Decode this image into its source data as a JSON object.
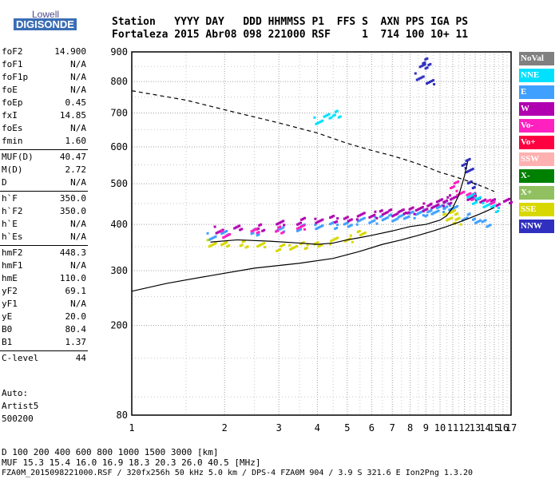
{
  "logo": {
    "line1": "Lowell",
    "line2": "DIGISONDE"
  },
  "header": {
    "line1": "Station   YYYY DAY   DDD HHMMSS P1  FFS S  AXN PPS IGA PS",
    "line2": "Fortaleza 2015 Abr08 098 221000 RSF     1  714 100 10+ 11"
  },
  "params": [
    {
      "key": "foF2",
      "value": "14.900"
    },
    {
      "key": "foF1",
      "value": "N/A"
    },
    {
      "key": "foF1p",
      "value": "N/A"
    },
    {
      "key": "foE",
      "value": "N/A"
    },
    {
      "key": "foEp",
      "value": "0.45"
    },
    {
      "key": "fxI",
      "value": "14.85"
    },
    {
      "key": "foEs",
      "value": "N/A"
    },
    {
      "key": "fmin",
      "value": "1.60"
    },
    {
      "key": "MUF(D)",
      "value": "40.47"
    },
    {
      "key": "M(D)",
      "value": "2.72"
    },
    {
      "key": "D",
      "value": "N/A"
    },
    {
      "key": "h`F",
      "value": "350.0"
    },
    {
      "key": "h`F2",
      "value": "350.0"
    },
    {
      "key": "h`E",
      "value": "N/A"
    },
    {
      "key": "h`Es",
      "value": "N/A"
    },
    {
      "key": "hmF2",
      "value": "448.3"
    },
    {
      "key": "hmF1",
      "value": "N/A"
    },
    {
      "key": "hmE",
      "value": "110.0"
    },
    {
      "key": "yF2",
      "value": "69.1"
    },
    {
      "key": "yF1",
      "value": "N/A"
    },
    {
      "key": "yE",
      "value": "20.0"
    },
    {
      "key": "B0",
      "value": "80.4"
    },
    {
      "key": "B1",
      "value": "1.37"
    },
    {
      "key": "C-level",
      "value": "44"
    }
  ],
  "auto": {
    "line1": "Auto:",
    "line2": "Artist5",
    "line3": "500200"
  },
  "legend": [
    {
      "label": "NoVal",
      "color": "#808080"
    },
    {
      "label": "NNE",
      "color": "#00e0ff"
    },
    {
      "label": "E",
      "color": "#40a0ff"
    },
    {
      "label": "W",
      "color": "#b000b0"
    },
    {
      "label": "Vo-",
      "color": "#ff20c0"
    },
    {
      "label": "Vo+",
      "color": "#ff0040"
    },
    {
      "label": "SSW",
      "color": "#ffb0b0"
    },
    {
      "label": "X-",
      "color": "#008000"
    },
    {
      "label": "X+",
      "color": "#90c060"
    },
    {
      "label": "SSE",
      "color": "#d8d800"
    },
    {
      "label": "NNW",
      "color": "#3030c0"
    }
  ],
  "footer": {
    "d_line": "D     100  200  400  600  800 1000 1500 3000 [km]",
    "muf_line": "MUF  15.3 15.4 16.0 16.9 18.3 20.3 26.0 40.5 [MHz]",
    "info_line": "FZA0M_2015098221000.RSF / 320fx256h 50 kHz 5.0 km / DPS-4 FZA0M 904 / 3.9 S 321.6 E   Ion2Png 1.3.20"
  },
  "chart_data": {
    "type": "scatter",
    "title": "",
    "xlabel": "",
    "ylabel": "",
    "xlim": [
      1,
      17
    ],
    "ylim": [
      80,
      900
    ],
    "x_scale": "log-frequency",
    "y_scale": "sqrt-height",
    "x_ticks": [
      1,
      2,
      3,
      4,
      5,
      6,
      7,
      8,
      9,
      10,
      11,
      12,
      13,
      14,
      15,
      16,
      17
    ],
    "y_ticks": [
      80,
      200,
      300,
      400,
      500,
      600,
      700,
      800,
      900
    ],
    "grid": true,
    "legend_position": "right",
    "series": [
      {
        "name": "E",
        "color": "#40a0ff",
        "kind": "points",
        "x": [
          1.8,
          2.0,
          2.5,
          3.0,
          3.5,
          4.0,
          4.5,
          5.0,
          5.5,
          6.0,
          6.5,
          7.0,
          7.5,
          8.0,
          8.5,
          9.0,
          9.5,
          10.0,
          10.5,
          11.0,
          12.0,
          13.0,
          14.0
        ],
        "y": [
          375,
          380,
          385,
          390,
          395,
          398,
          400,
          405,
          410,
          412,
          415,
          418,
          420,
          425,
          430,
          430,
          435,
          440,
          445,
          440,
          420,
          410,
          405
        ]
      },
      {
        "name": "W",
        "color": "#b000b0",
        "kind": "points",
        "x": [
          1.9,
          2.2,
          2.6,
          3.0,
          3.5,
          4.0,
          4.5,
          5.0,
          5.5,
          6.0,
          6.5,
          7.0,
          7.5,
          8.0,
          8.5,
          9.0,
          9.5,
          10.0,
          10.5,
          11.0,
          12.5,
          13.5,
          15.0,
          16.5
        ],
        "y": [
          390,
          392,
          395,
          405,
          410,
          412,
          415,
          418,
          422,
          425,
          428,
          430,
          432,
          435,
          440,
          445,
          450,
          455,
          460,
          465,
          470,
          460,
          455,
          460
        ]
      },
      {
        "name": "SSE",
        "color": "#d8d800",
        "kind": "points",
        "x": [
          1.8,
          2.0,
          2.3,
          2.6,
          3.0,
          3.3,
          3.6,
          4.0,
          4.5,
          5.0,
          5.5,
          10.5,
          11.0,
          11.3
        ],
        "y": [
          360,
          355,
          358,
          355,
          350,
          352,
          355,
          360,
          365,
          370,
          380,
          420,
          430,
          410
        ]
      },
      {
        "name": "NNW",
        "color": "#3030c0",
        "kind": "points",
        "x": [
          8.5,
          8.8,
          9.0,
          9.2,
          12.0,
          12.3,
          12.6,
          13.0
        ],
        "y": [
          820,
          850,
          870,
          800,
          560,
          540,
          500,
          470
        ]
      },
      {
        "name": "NNE",
        "color": "#00e0ff",
        "kind": "points",
        "x": [
          4.0,
          4.3,
          4.6,
          12.5,
          13.0,
          14.0,
          15.0
        ],
        "y": [
          680,
          690,
          700,
          470,
          460,
          450,
          440
        ]
      },
      {
        "name": "Vo-",
        "color": "#ff20c0",
        "kind": "points",
        "x": [
          2.0,
          2.5,
          3.0,
          3.5,
          11.0,
          11.5,
          12.5,
          14.5
        ],
        "y": [
          380,
          385,
          390,
          395,
          500,
          480,
          470,
          460
        ]
      },
      {
        "name": "profile",
        "color": "#000000",
        "kind": "line",
        "x": [
          1.0,
          1.3,
          1.8,
          2.5,
          3.5,
          4.5,
          5.5,
          6.5,
          7.5,
          8.5,
          9.5,
          10.5,
          11.5,
          12.5,
          13.5,
          14.5,
          15.0
        ],
        "y": [
          260,
          275,
          290,
          305,
          315,
          325,
          340,
          355,
          365,
          375,
          385,
          395,
          405,
          415,
          425,
          435,
          440
        ]
      },
      {
        "name": "trace",
        "color": "#000000",
        "kind": "line",
        "x": [
          1.8,
          2.2,
          2.8,
          3.5,
          4.0,
          4.5,
          5.0,
          5.5,
          6.0,
          7.0,
          8.0,
          9.0,
          10.0,
          10.5,
          11.0,
          11.5,
          12.0,
          12.3
        ],
        "y": [
          360,
          365,
          362,
          358,
          355,
          358,
          365,
          370,
          375,
          385,
          395,
          400,
          410,
          420,
          440,
          470,
          520,
          560
        ]
      },
      {
        "name": "MUF",
        "color": "#000000",
        "kind": "dashed",
        "x": [
          1.0,
          1.5,
          2.0,
          3.0,
          4.0,
          5.0,
          6.0,
          7.0,
          8.0,
          9.0,
          10.0,
          11.0,
          12.0,
          13.0,
          14.0,
          15.0
        ],
        "y": [
          770,
          740,
          710,
          670,
          640,
          610,
          590,
          575,
          560,
          545,
          530,
          520,
          510,
          500,
          490,
          480
        ]
      }
    ]
  }
}
